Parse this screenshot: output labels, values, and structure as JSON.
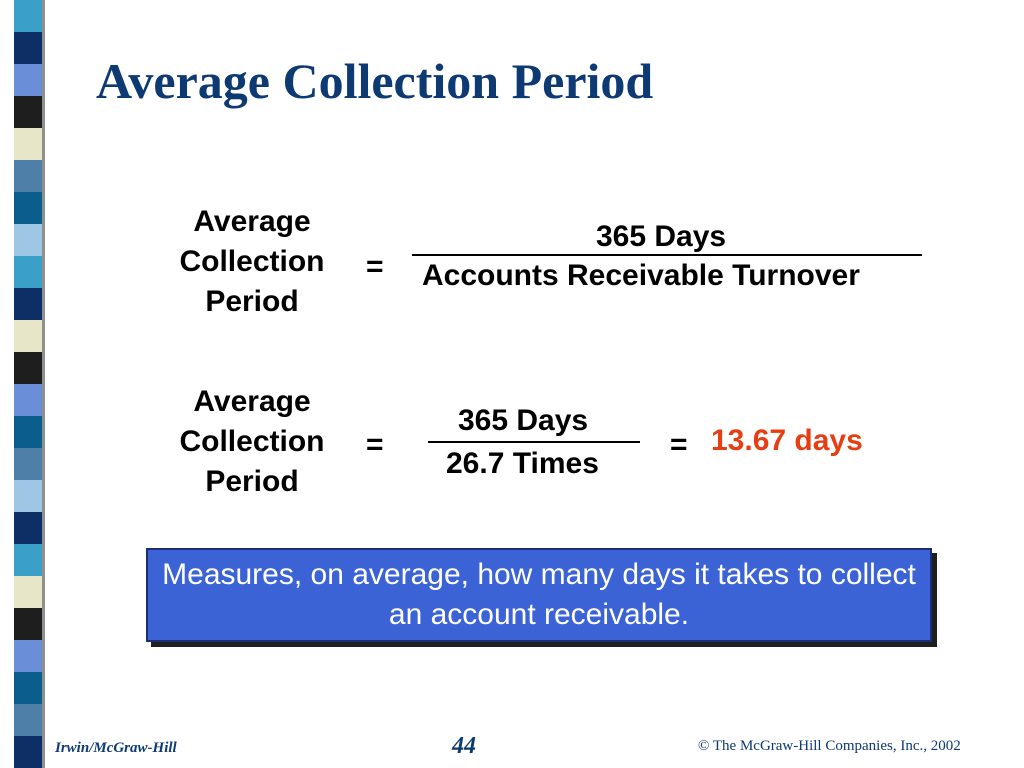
{
  "slide": {
    "title": "Average Collection Period",
    "formula_label": [
      "Average",
      "Collection",
      "Period"
    ],
    "equals": "=",
    "formula1": {
      "numerator": "365 Days",
      "denominator": "Accounts Receivable Turnover"
    },
    "formula2": {
      "numerator": "365 Days",
      "denominator": "26.7 Times",
      "result": "13.67 days"
    },
    "note": "Measures, on average, how many days it takes to collect an account receivable."
  },
  "footer": {
    "left": "Irwin/McGraw-Hill",
    "page": "44",
    "right": "© The McGraw-Hill Companies, Inc., 2002"
  },
  "colors": {
    "title": "#0d3a73",
    "result": "#e63e12",
    "note_bg": "#3c63d6",
    "strip": [
      "#3aa0c8",
      "#0d2f66",
      "#6a8fd8",
      "#1e1e1e",
      "#e8e6c8",
      "#4d7fa8",
      "#0b5d8c",
      "#9ec7e6"
    ]
  }
}
